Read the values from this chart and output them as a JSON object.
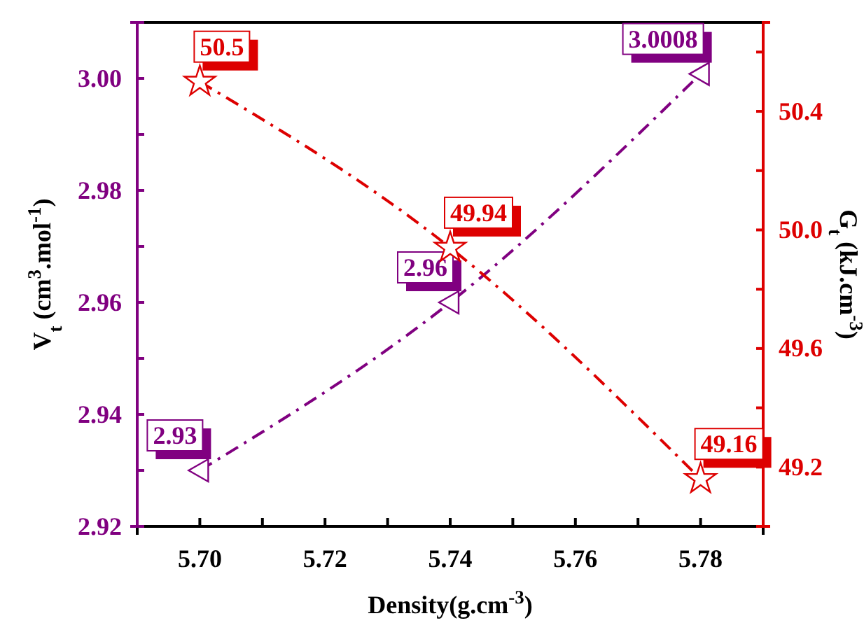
{
  "chart_data": {
    "type": "line",
    "xlabel": "Density(g.cm$^{-3}$)",
    "ylabel": "V$_{t}$ (cm$^{3}$.mol$^{-1}$)",
    "y2label": "G$_{t}$ (kJ.cm$^{-3}$)",
    "x": [
      5.7,
      5.74,
      5.78
    ],
    "xlim": [
      5.69,
      5.79
    ],
    "xticks": [
      {
        "value": 5.69,
        "label": null
      },
      {
        "value": 5.7,
        "label": "5.70"
      },
      {
        "value": 5.71,
        "label": null
      },
      5.72,
      {
        "value": 5.73,
        "label": null
      },
      5.74,
      {
        "value": 5.75,
        "label": null
      },
      5.76,
      {
        "value": 5.77,
        "label": null
      },
      5.78,
      {
        "value": 5.79,
        "label": null
      }
    ],
    "ylim": [
      2.92,
      3.01
    ],
    "yticks": [
      2.92,
      {
        "value": 2.93,
        "label": null
      },
      2.94,
      {
        "value": 2.95,
        "label": null
      },
      2.96,
      {
        "value": 2.97,
        "label": null
      },
      2.98,
      {
        "value": 2.99,
        "label": null
      },
      {
        "value": 3,
        "label": "3.00"
      },
      {
        "value": 3.01,
        "label": null
      }
    ],
    "y2lim": [
      49.0,
      50.7
    ],
    "y2ticks": [
      {
        "value": 49.0,
        "label": null
      },
      49.2,
      {
        "value": 49.4,
        "label": null
      },
      49.6,
      {
        "value": 49.8,
        "label": null
      },
      {
        "value": 50,
        "label": "50.0"
      },
      {
        "value": 50.2,
        "label": null
      },
      50.4,
      {
        "value": 50.6,
        "label": null
      }
    ],
    "series": [
      {
        "color": "#800080",
        "values": [
          2.93,
          2.96,
          3.0008
        ],
        "marker": "triangle",
        "line_style": "dashed"
      },
      {
        "color": "#dd0000",
        "values": [
          50.5,
          49.94,
          49.16
        ],
        "marker": "star",
        "line_style": "dashed",
        "axis": "y2"
      }
    ],
    "data_labels": true,
    "grid": false
  }
}
